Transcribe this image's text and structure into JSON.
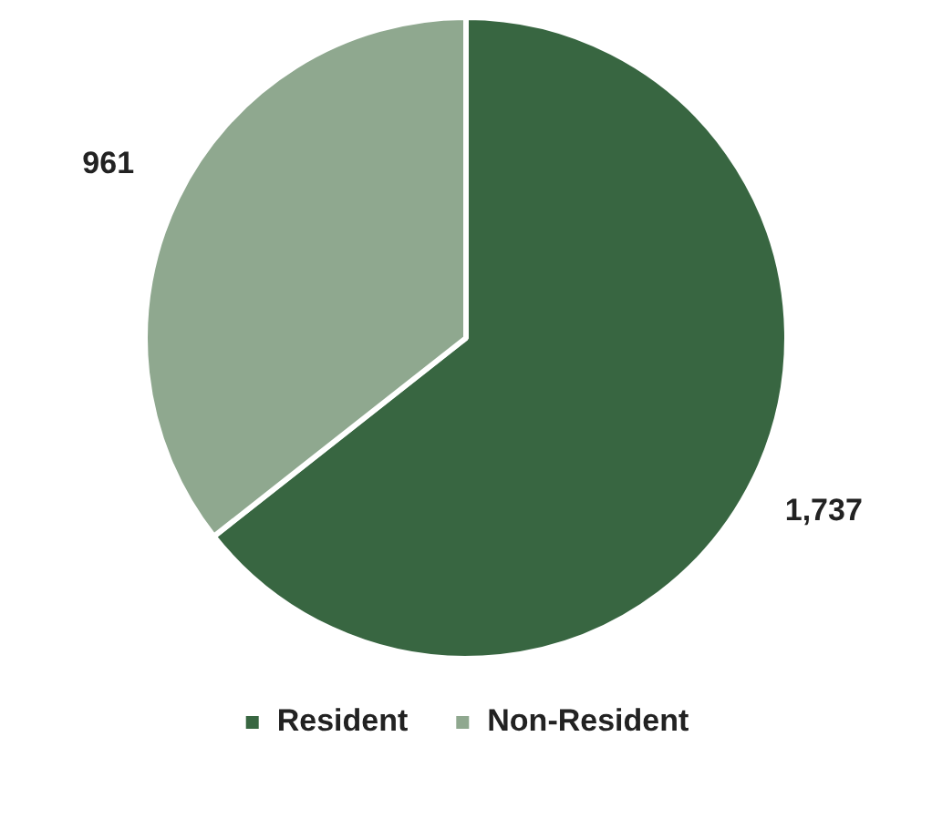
{
  "chart_data": {
    "type": "pie",
    "categories": [
      "Resident",
      "Non-Resident"
    ],
    "values": [
      1737,
      961
    ],
    "value_labels": [
      "1,737",
      "961"
    ],
    "colors": [
      "#386641",
      "#8fa88f"
    ],
    "legend": "bottom"
  }
}
